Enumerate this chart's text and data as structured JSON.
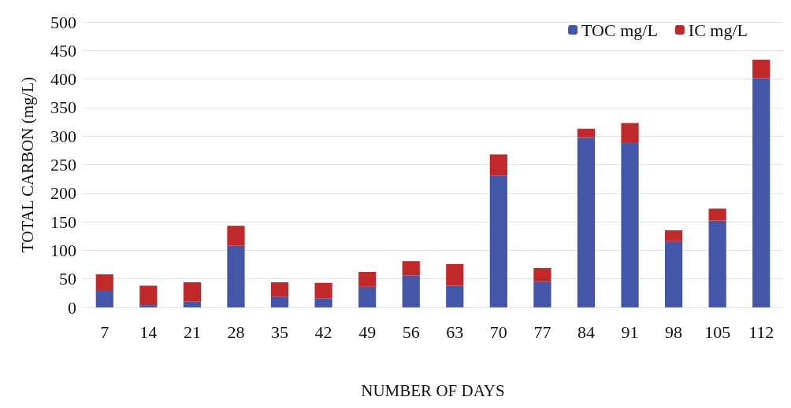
{
  "chart_data": {
    "type": "bar",
    "stacked": true,
    "xlabel": "NUMBER OF DAYS",
    "ylabel": "TOTAL CARBON (mg/L)",
    "categories": [
      "7",
      "14",
      "21",
      "28",
      "35",
      "42",
      "49",
      "56",
      "63",
      "70",
      "77",
      "84",
      "91",
      "98",
      "105",
      "112"
    ],
    "series": [
      {
        "name": "TOC mg/L",
        "color": "#4356a8",
        "values": [
          29,
          4,
          10,
          108,
          19,
          16,
          36,
          56,
          38,
          231,
          45,
          298,
          288,
          116,
          152,
          402
        ]
      },
      {
        "name": "IC mg/L",
        "color": "#c0282a",
        "values": [
          29,
          34,
          34,
          35,
          25,
          27,
          26,
          25,
          38,
          37,
          24,
          15,
          35,
          19,
          21,
          32
        ]
      }
    ],
    "ylim": [
      0,
      500
    ],
    "yticks": [
      0,
      50,
      100,
      150,
      200,
      250,
      300,
      350,
      400,
      450,
      500
    ],
    "grid": "y",
    "legend": "top right"
  }
}
